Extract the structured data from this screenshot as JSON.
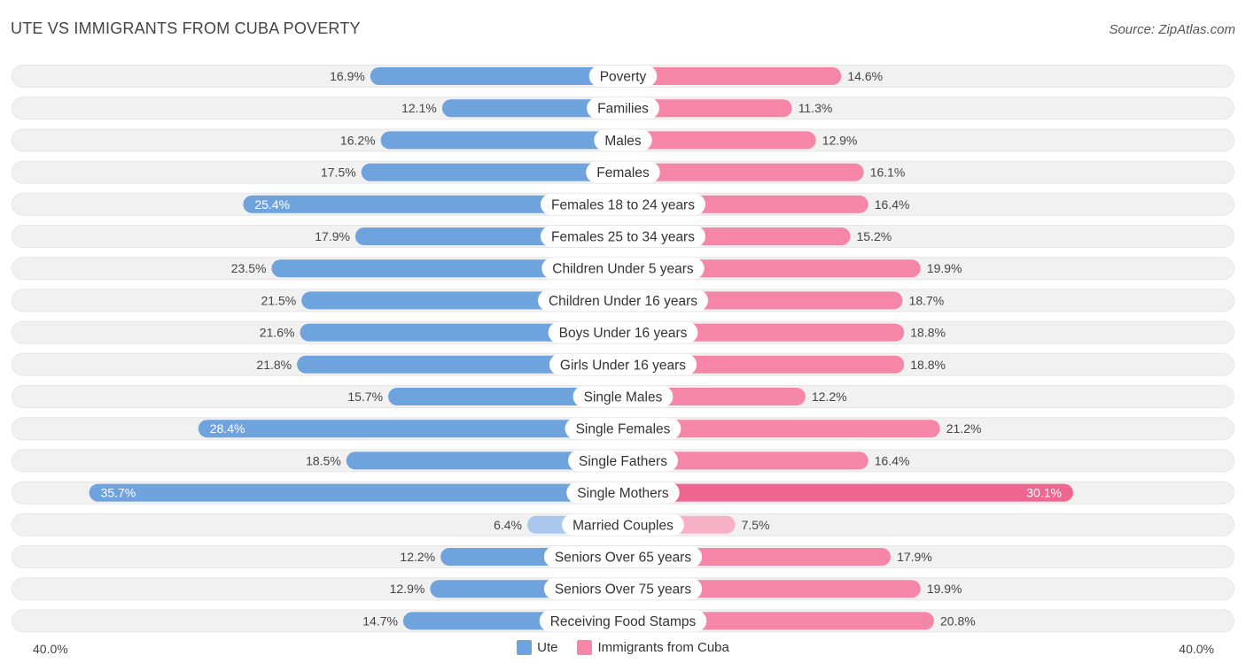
{
  "header": {
    "title": "UTE VS IMMIGRANTS FROM CUBA POVERTY",
    "source": "Source: ZipAtlas.com"
  },
  "colors": {
    "ute": "#6fa3de",
    "ute_light": "#aac8ee",
    "cuba": "#f586a8",
    "cuba_strong": "#ef6791",
    "cuba_light": "#f8b0c6",
    "row_bg": "#f1f1f1"
  },
  "axis": {
    "left_label": "40.0%",
    "right_label": "40.0%"
  },
  "legend": {
    "ute_label": "Ute",
    "cuba_label": "Immigrants from Cuba"
  },
  "chart_data": {
    "type": "bar",
    "orientation": "horizontal-diverging",
    "title": "UTE VS IMMIGRANTS FROM CUBA POVERTY",
    "xlim": [
      0,
      40
    ],
    "unit": "%",
    "categories": [
      "Poverty",
      "Families",
      "Males",
      "Females",
      "Females 18 to 24 years",
      "Females 25 to 34 years",
      "Children Under 5 years",
      "Children Under 16 years",
      "Boys Under 16 years",
      "Girls Under 16 years",
      "Single Males",
      "Single Females",
      "Single Fathers",
      "Single Mothers",
      "Married Couples",
      "Seniors Over 65 years",
      "Seniors Over 75 years",
      "Receiving Food Stamps"
    ],
    "series": [
      {
        "name": "Ute",
        "side": "left",
        "values": [
          16.9,
          12.1,
          16.2,
          17.5,
          25.4,
          17.9,
          23.5,
          21.5,
          21.6,
          21.8,
          15.7,
          28.4,
          18.5,
          35.7,
          6.4,
          12.2,
          12.9,
          14.7
        ]
      },
      {
        "name": "Immigrants from Cuba",
        "side": "right",
        "values": [
          14.6,
          11.3,
          12.9,
          16.1,
          16.4,
          15.2,
          19.9,
          18.7,
          18.8,
          18.8,
          12.2,
          21.2,
          16.4,
          30.1,
          7.5,
          17.9,
          19.9,
          20.8
        ]
      }
    ]
  }
}
